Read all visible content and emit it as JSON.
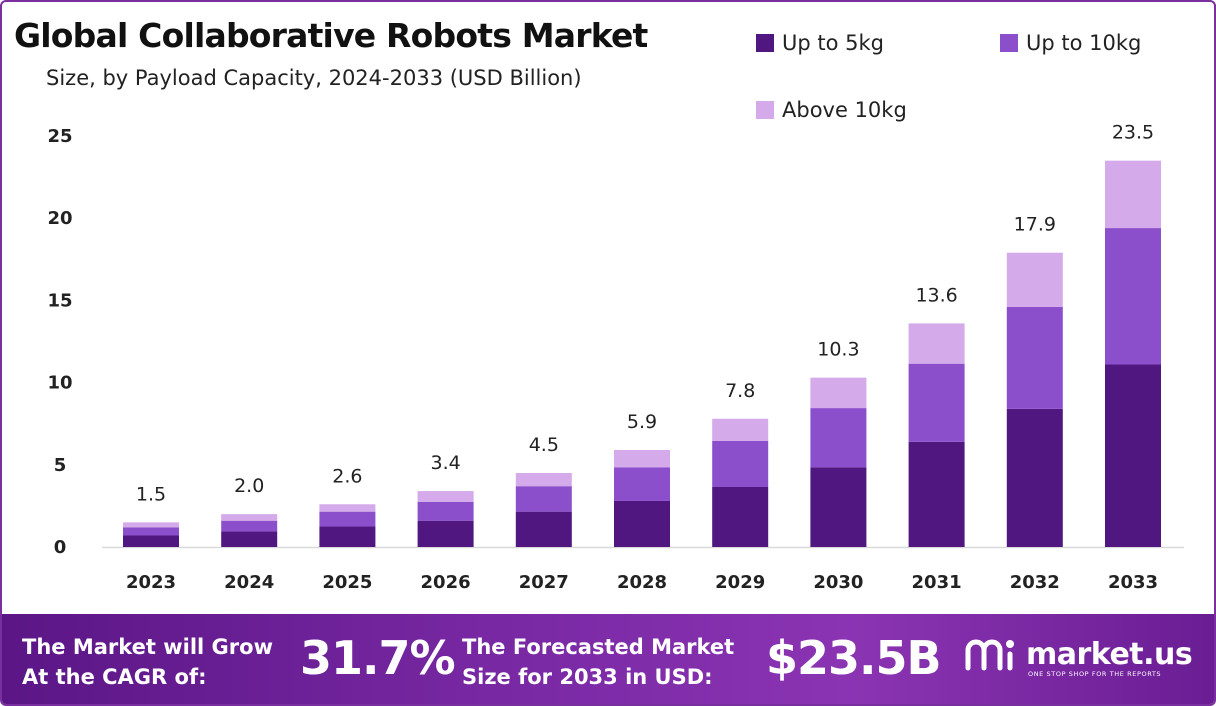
{
  "title": "Global Collaborative Robots Market",
  "subtitle": "Size, by Payload Capacity, 2024-2033 (USD Billion)",
  "legend": [
    {
      "label": "Up to 5kg",
      "color": "#4f177f"
    },
    {
      "label": "Up to 10kg",
      "color": "#8c4fcc"
    },
    {
      "label": "Above 10kg",
      "color": "#d4aaea"
    }
  ],
  "chart_data": {
    "type": "bar",
    "stacked": true,
    "categories": [
      "2023",
      "2024",
      "2025",
      "2026",
      "2027",
      "2028",
      "2029",
      "2030",
      "2031",
      "2032",
      "2033"
    ],
    "series": [
      {
        "name": "Up to 5kg",
        "values": [
          0.7,
          0.95,
          1.25,
          1.6,
          2.15,
          2.8,
          3.65,
          4.85,
          6.4,
          8.4,
          11.1
        ]
      },
      {
        "name": "Up to 10kg",
        "values": [
          0.5,
          0.65,
          0.9,
          1.15,
          1.55,
          2.05,
          2.8,
          3.6,
          4.75,
          6.2,
          8.3
        ]
      },
      {
        "name": "Above 10kg",
        "values": [
          0.3,
          0.4,
          0.45,
          0.65,
          0.8,
          1.05,
          1.35,
          1.85,
          2.45,
          3.3,
          4.1
        ]
      }
    ],
    "totals": [
      "1.5",
      "2.0",
      "2.6",
      "3.4",
      "4.5",
      "5.9",
      "7.8",
      "10.3",
      "13.6",
      "17.9",
      "23.5"
    ],
    "yticks": [
      "0",
      "5",
      "10",
      "15",
      "20",
      "25"
    ],
    "ylim": [
      0,
      25
    ],
    "xlabel": "",
    "ylabel": "",
    "grid": false,
    "legend_position": "top-right"
  },
  "banner": {
    "cagr_line1": "The Market will Grow",
    "cagr_line2": "At the CAGR of:",
    "cagr_value": "31.7%",
    "forecast_line1": "The Forecasted Market",
    "forecast_line2": "Size for 2033 in USD:",
    "forecast_value": "$23.5B",
    "brand_name": "market.us",
    "brand_tagline": "ONE STOP SHOP FOR THE REPORTS"
  }
}
